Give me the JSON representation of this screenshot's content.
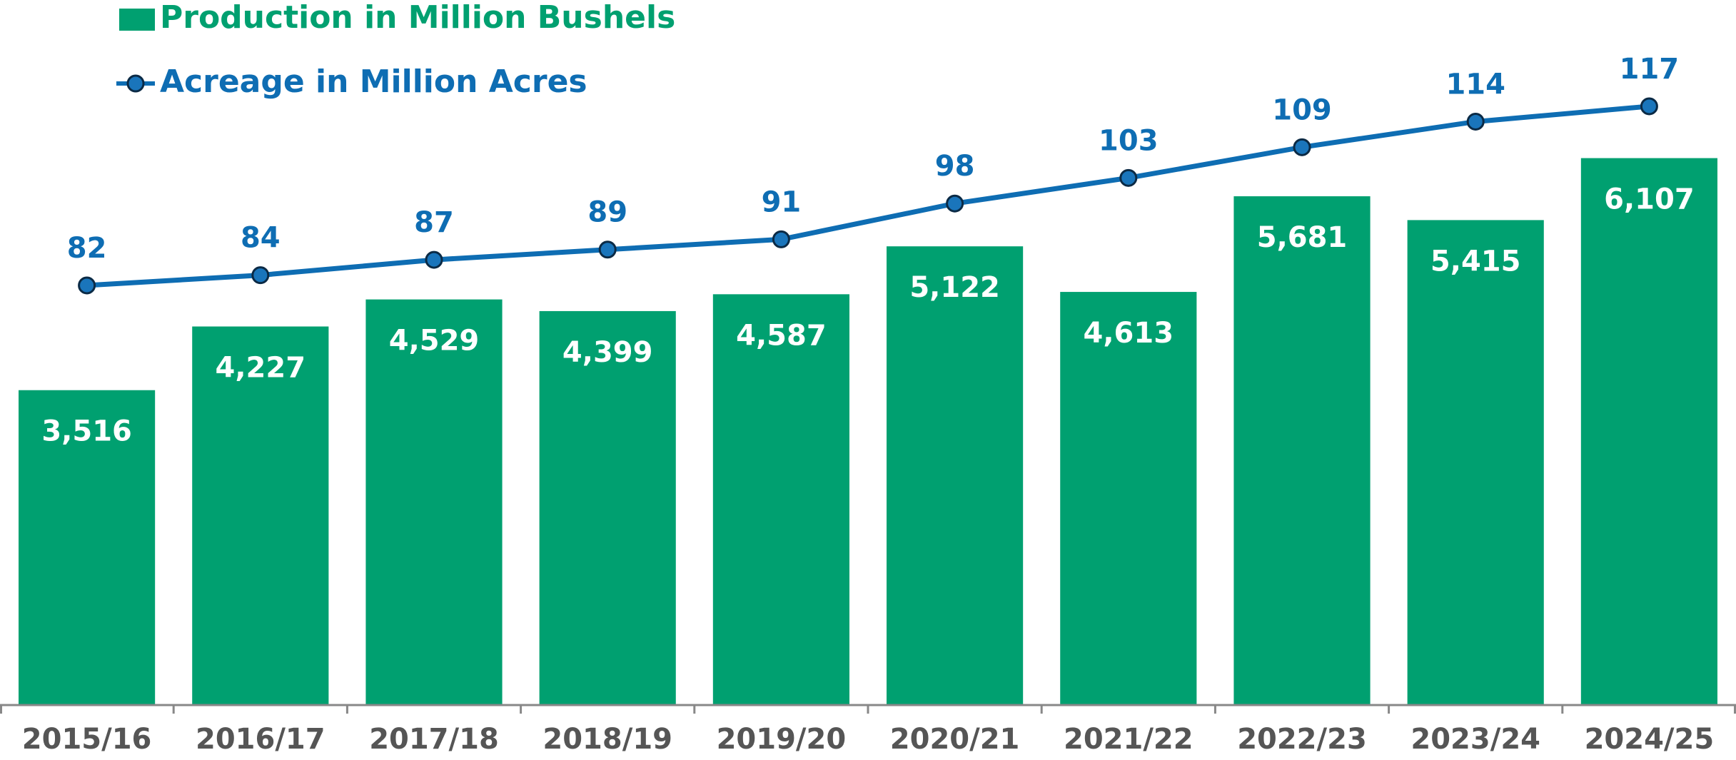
{
  "chart_data": {
    "type": "bar",
    "categories": [
      "2015/16",
      "2016/17",
      "2017/18",
      "2018/19",
      "2019/20",
      "2020/21",
      "2021/22",
      "2022/23",
      "2023/24",
      "2024/25"
    ],
    "series": [
      {
        "name": "Production in Million Bushels",
        "type": "bar",
        "color": "#00a070",
        "values": [
          3516,
          4227,
          4529,
          4399,
          4587,
          5122,
          4613,
          5681,
          5415,
          6107
        ],
        "value_labels": [
          "3,516",
          "4,227",
          "4,529",
          "4,399",
          "4,587",
          "5,122",
          "4,613",
          "5,681",
          "5,415",
          "6,107"
        ]
      },
      {
        "name": "Acreage in Million Acres",
        "type": "line",
        "axis": "y2",
        "color": "#0e6db3",
        "marker_color": "#1a75bb",
        "values": [
          82,
          84,
          87,
          89,
          91,
          98,
          103,
          109,
          114,
          117
        ]
      }
    ],
    "ylim": [
      0,
      8000
    ],
    "y2lim": [
      0,
      140
    ]
  }
}
